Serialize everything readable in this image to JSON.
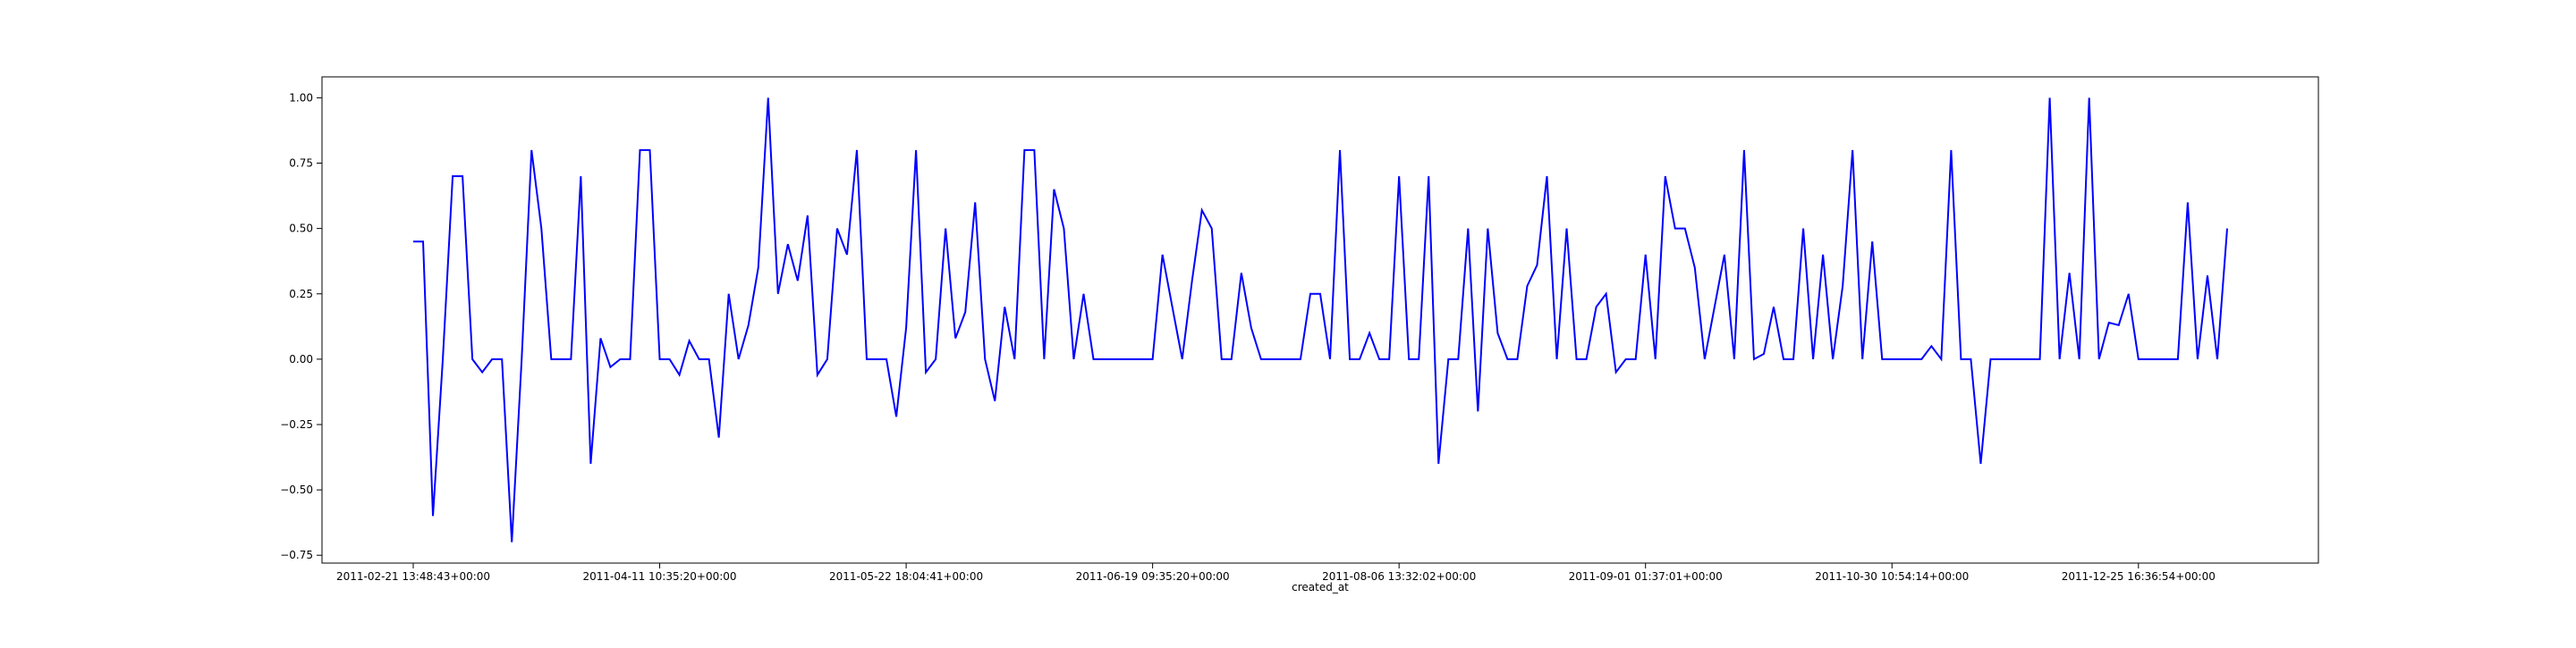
{
  "chart_data": {
    "type": "line",
    "title": "",
    "xlabel": "created_at",
    "ylabel": "",
    "ylim": [
      -0.78,
      1.08
    ],
    "grid": false,
    "legend": "none",
    "line_color": "#0000ff",
    "x_ticks": [
      {
        "index": 0,
        "label": "2011-02-21 13:48:43+00:00"
      },
      {
        "index": 25,
        "label": "2011-04-11 10:35:20+00:00"
      },
      {
        "index": 50,
        "label": "2011-05-22 18:04:41+00:00"
      },
      {
        "index": 75,
        "label": "2011-06-19 09:35:20+00:00"
      },
      {
        "index": 100,
        "label": "2011-08-06 13:32:02+00:00"
      },
      {
        "index": 125,
        "label": "2011-09-01 01:37:01+00:00"
      },
      {
        "index": 150,
        "label": "2011-10-30 10:54:14+00:00"
      },
      {
        "index": 175,
        "label": "2011-12-25 16:36:54+00:00"
      }
    ],
    "y_ticks": [
      {
        "value": 1.0,
        "label": "1.00"
      },
      {
        "value": 0.75,
        "label": "0.75"
      },
      {
        "value": 0.5,
        "label": "0.50"
      },
      {
        "value": 0.25,
        "label": "0.25"
      },
      {
        "value": 0.0,
        "label": "0.00"
      },
      {
        "value": -0.25,
        "label": "−0.25"
      },
      {
        "value": -0.5,
        "label": "−0.50"
      },
      {
        "value": -0.75,
        "label": "−0.75"
      }
    ],
    "series": [
      {
        "values": [
          0.45,
          0.45,
          -0.6,
          0.0,
          0.7,
          0.7,
          0.0,
          -0.05,
          0.0,
          0.0,
          -0.7,
          0.0,
          0.8,
          0.5,
          0.0,
          0.0,
          0.0,
          0.7,
          -0.4,
          0.08,
          -0.03,
          0.0,
          0.0,
          0.8,
          0.8,
          0.0,
          0.0,
          -0.06,
          0.07,
          0.0,
          0.0,
          -0.3,
          0.25,
          0.0,
          0.13,
          0.35,
          1.0,
          0.25,
          0.44,
          0.3,
          0.55,
          -0.06,
          0.0,
          0.5,
          0.4,
          0.8,
          0.0,
          0.0,
          0.0,
          -0.22,
          0.12,
          0.8,
          -0.05,
          0.0,
          0.5,
          0.08,
          0.18,
          0.6,
          0.0,
          -0.16,
          0.2,
          0.0,
          0.8,
          0.8,
          0.0,
          0.65,
          0.5,
          0.0,
          0.25,
          0.0,
          0.0,
          0.0,
          0.0,
          0.0,
          0.0,
          0.0,
          0.4,
          0.2,
          0.0,
          0.3,
          0.57,
          0.5,
          0.0,
          0.0,
          0.33,
          0.12,
          0.0,
          0.0,
          0.0,
          0.0,
          0.0,
          0.25,
          0.25,
          0.0,
          0.8,
          0.0,
          0.0,
          0.1,
          0.0,
          0.0,
          0.7,
          0.0,
          0.0,
          0.7,
          -0.4,
          0.0,
          0.0,
          0.5,
          -0.2,
          0.5,
          0.1,
          0.0,
          0.0,
          0.28,
          0.36,
          0.7,
          0.0,
          0.5,
          0.0,
          0.0,
          0.2,
          0.25,
          -0.05,
          0.0,
          0.0,
          0.4,
          0.0,
          0.7,
          0.5,
          0.5,
          0.35,
          0.0,
          0.2,
          0.4,
          0.0,
          0.8,
          0.0,
          0.02,
          0.2,
          0.0,
          0.0,
          0.5,
          0.0,
          0.4,
          0.0,
          0.28,
          0.8,
          0.0,
          0.45,
          0.0,
          0.0,
          0.0,
          0.0,
          0.0,
          0.05,
          0.0,
          0.8,
          0.0,
          0.0,
          -0.4,
          0.0,
          0.0,
          0.0,
          0.0,
          0.0,
          0.0,
          1.0,
          0.0,
          0.33,
          0.0,
          1.0,
          0.0,
          0.14,
          0.13,
          0.25,
          0.0,
          0.0,
          0.0,
          0.0,
          0.0,
          0.6,
          0.0,
          0.32,
          0.0,
          0.5
        ]
      }
    ]
  }
}
